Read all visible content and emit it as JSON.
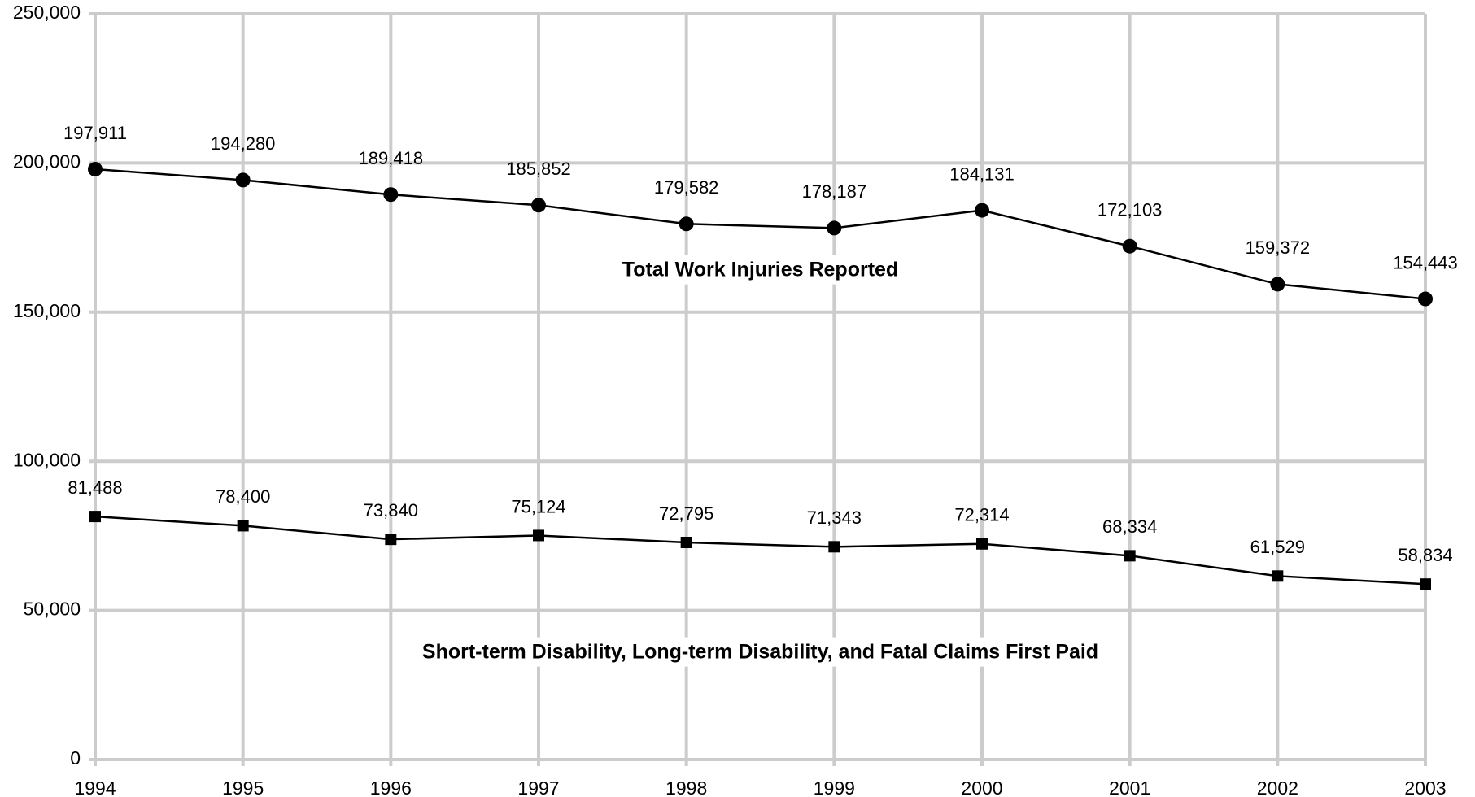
{
  "chart_data": {
    "type": "line",
    "categories": [
      "1994",
      "1995",
      "1996",
      "1997",
      "1998",
      "1999",
      "2000",
      "2001",
      "2002",
      "2003"
    ],
    "series": [
      {
        "name": "Total Work Injuries Reported",
        "color": "#000000",
        "marker": "circle",
        "values": [
          197911,
          194280,
          189418,
          185852,
          179582,
          178187,
          184131,
          172103,
          159372,
          154443
        ],
        "value_labels": [
          "197,911",
          "194,280",
          "189,418",
          "185,852",
          "179,582",
          "178,187",
          "184,131",
          "172,103",
          "159,372",
          "154,443"
        ]
      },
      {
        "name": "Short-term Disability, Long-term Disability, and Fatal Claims First Paid",
        "color": "#000000",
        "marker": "square",
        "values": [
          81488,
          78400,
          73840,
          75124,
          72795,
          71343,
          72314,
          68334,
          61529,
          58834
        ],
        "value_labels": [
          "81,488",
          "78,400",
          "73,840",
          "75,124",
          "72,795",
          "71,343",
          "72,314",
          "68,334",
          "61,529",
          "58,834"
        ]
      }
    ],
    "ylim": [
      0,
      250000
    ],
    "yticks": [
      0,
      {
        "value": 50000,
        "label": "50,000"
      },
      {
        "value": 100000,
        "label": "100,000"
      },
      {
        "value": 150000,
        "label": "150,000"
      },
      {
        "value": 200000,
        "label": "200,000"
      },
      {
        "value": 250000,
        "label": "250,000"
      }
    ],
    "grid": true
  }
}
